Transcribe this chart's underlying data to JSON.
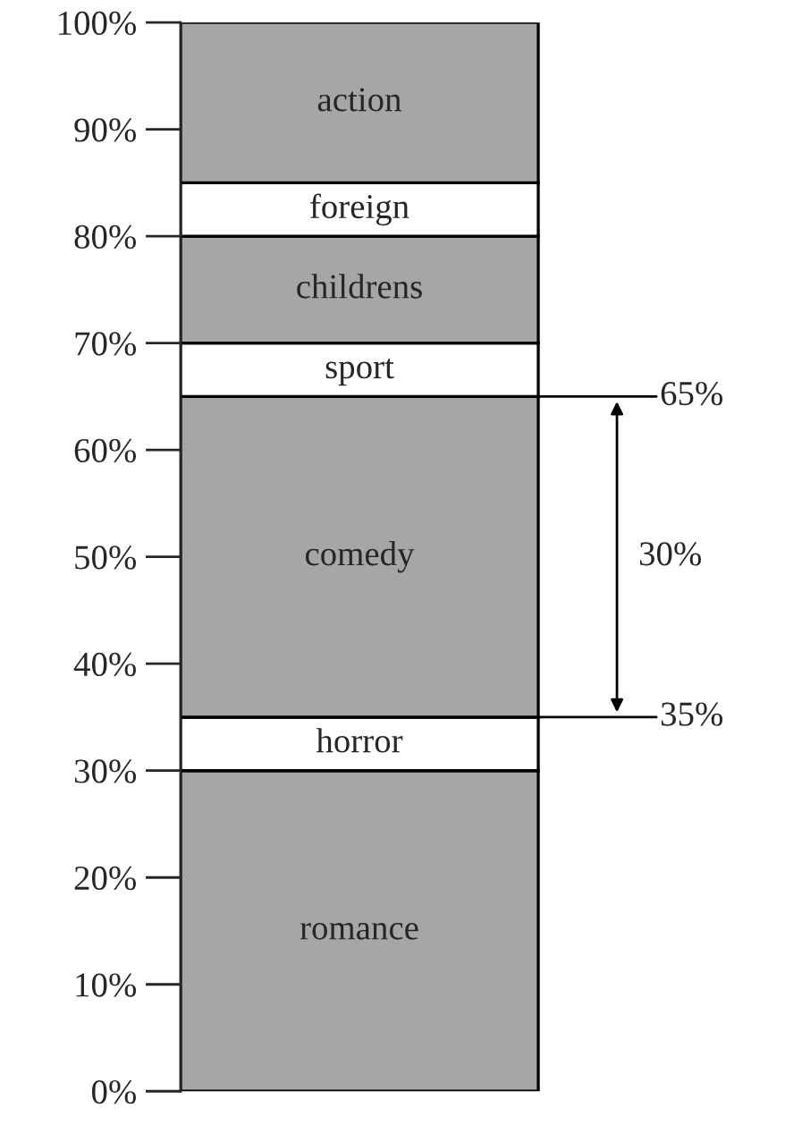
{
  "chart_data": {
    "type": "bar",
    "stacked": true,
    "categories": [
      null
    ],
    "series": [
      {
        "name": "romance",
        "color": "#a6a6a6",
        "values": [
          30
        ]
      },
      {
        "name": "horror",
        "color": "#ffffff",
        "values": [
          5
        ]
      },
      {
        "name": "comedy",
        "color": "#a6a6a6",
        "values": [
          30
        ]
      },
      {
        "name": "sport",
        "color": "#ffffff",
        "values": [
          5
        ]
      },
      {
        "name": "childrens",
        "color": "#a6a6a6",
        "values": [
          10
        ]
      },
      {
        "name": "foreign",
        "color": "#ffffff",
        "values": [
          5
        ]
      },
      {
        "name": "action",
        "color": "#a6a6a6",
        "values": [
          15
        ]
      }
    ],
    "ylim": [
      0,
      100
    ],
    "yticks": [
      {
        "value": 0,
        "label": "0%"
      },
      {
        "value": 10,
        "label": "10%"
      },
      {
        "value": 20,
        "label": "20%"
      },
      {
        "value": 30,
        "label": "30%"
      },
      {
        "value": 40,
        "label": "40%"
      },
      {
        "value": 50,
        "label": "50%"
      },
      {
        "value": 60,
        "label": "60%"
      },
      {
        "value": 70,
        "label": "70%"
      },
      {
        "value": 80,
        "label": "80%"
      },
      {
        "value": 90,
        "label": "90%"
      },
      {
        "value": 100,
        "label": "100%"
      }
    ],
    "tick_labels": "y",
    "ref_lines": [
      {
        "axis": "y",
        "value": 65,
        "label": "65%"
      },
      {
        "axis": "y",
        "value": 35,
        "label": "35%"
      }
    ],
    "annotations": [
      "30%"
    ]
  }
}
